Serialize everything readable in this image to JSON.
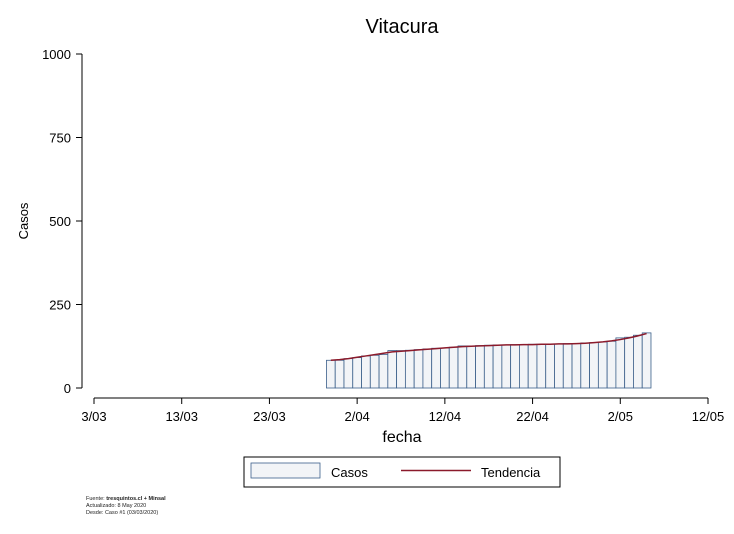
{
  "chart_data": {
    "type": "bar",
    "title": "Vitacura",
    "xlabel": "fecha",
    "ylabel": "Casos",
    "x_axis": {
      "range": [
        "2020-03-03",
        "2020-05-12"
      ],
      "ticks": [
        {
          "date": "2020-03-03",
          "label": "3/03"
        },
        {
          "date": "2020-03-13",
          "label": "13/03"
        },
        {
          "date": "2020-03-23",
          "label": "23/03"
        },
        {
          "date": "2020-04-02",
          "label": "2/04"
        },
        {
          "date": "2020-04-12",
          "label": "12/04"
        },
        {
          "date": "2020-04-22",
          "label": "22/04"
        },
        {
          "date": "2020-05-02",
          "label": "2/05"
        },
        {
          "date": "2020-05-12",
          "label": "12/05"
        }
      ]
    },
    "y_axis": {
      "range": [
        0,
        1000
      ],
      "ticks": [
        0,
        250,
        500,
        750,
        1000
      ]
    },
    "grid": false,
    "legend_position": "bottom",
    "series": [
      {
        "name": "Casos",
        "kind": "bar",
        "fill": "#f2f4f7",
        "stroke": "#3b5f8a",
        "x": [
          "2020-03-30",
          "2020-03-31",
          "2020-04-01",
          "2020-04-02",
          "2020-04-03",
          "2020-04-04",
          "2020-04-05",
          "2020-04-06",
          "2020-04-07",
          "2020-04-08",
          "2020-04-09",
          "2020-04-10",
          "2020-04-11",
          "2020-04-12",
          "2020-04-13",
          "2020-04-14",
          "2020-04-15",
          "2020-04-16",
          "2020-04-17",
          "2020-04-18",
          "2020-04-19",
          "2020-04-20",
          "2020-04-21",
          "2020-04-22",
          "2020-04-23",
          "2020-04-24",
          "2020-04-25",
          "2020-04-26",
          "2020-04-27",
          "2020-04-28",
          "2020-04-29",
          "2020-04-30",
          "2020-05-01",
          "2020-05-02",
          "2020-05-03",
          "2020-05-04",
          "2020-05-05"
        ],
        "values": [
          83,
          83,
          88,
          91,
          96,
          98,
          100,
          112,
          112,
          113,
          115,
          117,
          119,
          120,
          122,
          126,
          126,
          127,
          128,
          129,
          129,
          130,
          130,
          131,
          131,
          132,
          132,
          133,
          133,
          135,
          136,
          138,
          140,
          150,
          152,
          158,
          165
        ]
      },
      {
        "name": "Tendencia",
        "kind": "line",
        "color": "#8b1a2b",
        "x": [
          "2020-03-30",
          "2020-03-31",
          "2020-04-01",
          "2020-04-02",
          "2020-04-03",
          "2020-04-04",
          "2020-04-05",
          "2020-04-06",
          "2020-04-07",
          "2020-04-08",
          "2020-04-09",
          "2020-04-10",
          "2020-04-11",
          "2020-04-12",
          "2020-04-13",
          "2020-04-14",
          "2020-04-15",
          "2020-04-16",
          "2020-04-17",
          "2020-04-18",
          "2020-04-19",
          "2020-04-20",
          "2020-04-21",
          "2020-04-22",
          "2020-04-23",
          "2020-04-24",
          "2020-04-25",
          "2020-04-26",
          "2020-04-27",
          "2020-04-28",
          "2020-04-29",
          "2020-04-30",
          "2020-05-01",
          "2020-05-02",
          "2020-05-03",
          "2020-05-04",
          "2020-05-05"
        ],
        "values": [
          83,
          85,
          88,
          92,
          96,
          100,
          104,
          108,
          110,
          112,
          114,
          116,
          118,
          120,
          122,
          124,
          125,
          126,
          127,
          128,
          129,
          129,
          130,
          130,
          131,
          131,
          132,
          132,
          133,
          134,
          136,
          138,
          141,
          145,
          150,
          156,
          163
        ]
      }
    ]
  },
  "footnote": {
    "source_prefix": "Fuente: ",
    "source_bold": "tresquintos.cl + Minsal",
    "updated": "Actualizado: 8 May 2020",
    "since": "Desde: Caso #1  (03/03/2020)"
  }
}
